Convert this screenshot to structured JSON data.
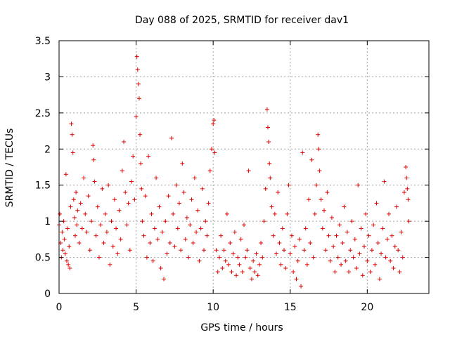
{
  "chart_data": {
    "type": "scatter",
    "title": "Day 088 of 2025, SRMTID for receiver dav1",
    "xlabel": "GPS time / hours",
    "ylabel": "SRMTID / TECUs",
    "xlim": [
      0,
      24
    ],
    "ylim": [
      0,
      3.5
    ],
    "x_ticks": [
      0,
      5,
      10,
      15,
      20
    ],
    "x_tick_labels": [
      "0",
      "5",
      "10",
      "15",
      "20"
    ],
    "y_ticks": [
      0,
      0.5,
      1,
      1.5,
      2,
      2.5,
      3,
      3.5
    ],
    "y_tick_labels": [
      "0",
      "0.5",
      "1",
      "1.5",
      "2",
      "2.5",
      "3",
      "3.5"
    ],
    "grid": true,
    "marker": "+",
    "series": [
      {
        "name": "dav1",
        "color": "#e00000",
        "points": [
          [
            0.0,
            0.95
          ],
          [
            0.05,
            1.1
          ],
          [
            0.1,
            0.7
          ],
          [
            0.15,
            0.5
          ],
          [
            0.2,
            0.85
          ],
          [
            0.25,
            0.6
          ],
          [
            0.3,
            1.0
          ],
          [
            0.35,
            0.75
          ],
          [
            0.4,
            0.55
          ],
          [
            0.45,
            1.65
          ],
          [
            0.5,
            0.45
          ],
          [
            0.55,
            0.9
          ],
          [
            0.6,
            0.4
          ],
          [
            0.65,
            0.65
          ],
          [
            0.7,
            0.35
          ],
          [
            0.75,
            1.2
          ],
          [
            0.8,
            2.35
          ],
          [
            0.85,
            2.2
          ],
          [
            0.9,
            1.95
          ],
          [
            0.95,
            1.3
          ],
          [
            1.0,
            1.05
          ],
          [
            1.05,
            0.8
          ],
          [
            1.1,
            1.4
          ],
          [
            1.15,
            0.95
          ],
          [
            1.2,
            1.15
          ],
          [
            1.3,
            0.7
          ],
          [
            1.4,
            1.25
          ],
          [
            1.5,
            0.9
          ],
          [
            1.6,
            1.6
          ],
          [
            1.7,
            1.1
          ],
          [
            1.8,
            0.85
          ],
          [
            1.9,
            1.35
          ],
          [
            2.0,
            0.6
          ],
          [
            2.1,
            1.0
          ],
          [
            2.2,
            2.05
          ],
          [
            2.25,
            1.85
          ],
          [
            2.3,
            1.55
          ],
          [
            2.4,
            0.8
          ],
          [
            2.5,
            1.2
          ],
          [
            2.6,
            0.5
          ],
          [
            2.7,
            0.95
          ],
          [
            2.8,
            1.45
          ],
          [
            2.9,
            0.7
          ],
          [
            3.0,
            1.1
          ],
          [
            3.1,
            0.85
          ],
          [
            3.2,
            1.5
          ],
          [
            3.3,
            0.4
          ],
          [
            3.4,
            1.0
          ],
          [
            3.5,
            0.65
          ],
          [
            3.6,
            1.3
          ],
          [
            3.7,
            0.9
          ],
          [
            3.8,
            0.55
          ],
          [
            3.9,
            1.15
          ],
          [
            4.0,
            0.75
          ],
          [
            4.1,
            1.7
          ],
          [
            4.2,
            2.1
          ],
          [
            4.3,
            1.4
          ],
          [
            4.4,
            0.95
          ],
          [
            4.5,
            1.25
          ],
          [
            4.6,
            0.6
          ],
          [
            4.7,
            1.55
          ],
          [
            4.8,
            1.9
          ],
          [
            4.9,
            1.3
          ],
          [
            5.0,
            2.45
          ],
          [
            5.05,
            3.28
          ],
          [
            5.1,
            3.1
          ],
          [
            5.15,
            2.9
          ],
          [
            5.2,
            2.7
          ],
          [
            5.25,
            2.2
          ],
          [
            5.3,
            1.8
          ],
          [
            5.35,
            1.45
          ],
          [
            5.4,
            1.0
          ],
          [
            5.5,
            0.8
          ],
          [
            5.6,
            1.35
          ],
          [
            5.7,
            0.5
          ],
          [
            5.8,
            1.9
          ],
          [
            5.9,
            0.7
          ],
          [
            6.0,
            1.1
          ],
          [
            6.1,
            0.45
          ],
          [
            6.2,
            0.9
          ],
          [
            6.3,
            1.6
          ],
          [
            6.4,
            0.75
          ],
          [
            6.5,
            1.2
          ],
          [
            6.6,
            0.35
          ],
          [
            6.7,
            0.85
          ],
          [
            6.8,
            0.2
          ],
          [
            6.9,
            1.0
          ],
          [
            7.0,
            0.55
          ],
          [
            7.1,
            1.35
          ],
          [
            7.2,
            0.7
          ],
          [
            7.3,
            2.15
          ],
          [
            7.4,
            1.1
          ],
          [
            7.5,
            0.65
          ],
          [
            7.6,
            1.5
          ],
          [
            7.7,
            0.9
          ],
          [
            7.8,
            1.25
          ],
          [
            7.9,
            0.6
          ],
          [
            8.0,
            1.8
          ],
          [
            8.1,
            1.4
          ],
          [
            8.2,
            0.75
          ],
          [
            8.3,
            1.05
          ],
          [
            8.4,
            0.5
          ],
          [
            8.5,
            0.95
          ],
          [
            8.6,
            1.3
          ],
          [
            8.7,
            0.7
          ],
          [
            8.8,
            1.6
          ],
          [
            8.9,
            0.85
          ],
          [
            9.0,
            1.15
          ],
          [
            9.1,
            0.45
          ],
          [
            9.2,
            0.9
          ],
          [
            9.3,
            1.45
          ],
          [
            9.4,
            0.6
          ],
          [
            9.5,
            1.0
          ],
          [
            9.6,
            0.8
          ],
          [
            9.7,
            1.25
          ],
          [
            9.8,
            1.7
          ],
          [
            9.9,
            2.0
          ],
          [
            10.0,
            2.35
          ],
          [
            10.05,
            2.4
          ],
          [
            10.1,
            1.95
          ],
          [
            10.2,
            0.6
          ],
          [
            10.3,
            0.3
          ],
          [
            10.4,
            0.5
          ],
          [
            10.5,
            0.8
          ],
          [
            10.6,
            0.35
          ],
          [
            10.7,
            0.6
          ],
          [
            10.8,
            0.45
          ],
          [
            10.9,
            1.1
          ],
          [
            11.0,
            0.4
          ],
          [
            11.1,
            0.7
          ],
          [
            11.2,
            0.3
          ],
          [
            11.3,
            0.55
          ],
          [
            11.4,
            0.85
          ],
          [
            11.5,
            0.25
          ],
          [
            11.6,
            0.5
          ],
          [
            11.7,
            0.4
          ],
          [
            11.8,
            0.75
          ],
          [
            11.9,
            0.3
          ],
          [
            12.0,
            0.95
          ],
          [
            12.1,
            0.5
          ],
          [
            12.2,
            0.6
          ],
          [
            12.3,
            1.7
          ],
          [
            12.4,
            0.35
          ],
          [
            12.5,
            0.2
          ],
          [
            12.6,
            0.45
          ],
          [
            12.7,
            0.3
          ],
          [
            12.8,
            0.55
          ],
          [
            12.9,
            0.25
          ],
          [
            13.0,
            0.4
          ],
          [
            13.1,
            0.7
          ],
          [
            13.2,
            0.5
          ],
          [
            13.3,
            1.0
          ],
          [
            13.4,
            1.45
          ],
          [
            13.5,
            2.55
          ],
          [
            13.55,
            2.3
          ],
          [
            13.6,
            2.1
          ],
          [
            13.65,
            1.8
          ],
          [
            13.7,
            1.6
          ],
          [
            13.8,
            1.2
          ],
          [
            13.9,
            0.8
          ],
          [
            14.0,
            1.1
          ],
          [
            14.1,
            0.55
          ],
          [
            14.2,
            1.4
          ],
          [
            14.3,
            0.7
          ],
          [
            14.4,
            0.4
          ],
          [
            14.5,
            0.9
          ],
          [
            14.6,
            0.6
          ],
          [
            14.7,
            0.35
          ],
          [
            14.8,
            1.1
          ],
          [
            14.9,
            1.5
          ],
          [
            15.0,
            0.55
          ],
          [
            15.1,
            0.8
          ],
          [
            15.2,
            0.3
          ],
          [
            15.3,
            0.65
          ],
          [
            15.4,
            0.2
          ],
          [
            15.5,
            0.45
          ],
          [
            15.6,
            0.75
          ],
          [
            15.7,
            0.1
          ],
          [
            15.8,
            1.95
          ],
          [
            15.9,
            0.6
          ],
          [
            16.0,
            0.9
          ],
          [
            16.1,
            0.4
          ],
          [
            16.2,
            1.3
          ],
          [
            16.3,
            0.7
          ],
          [
            16.4,
            1.85
          ],
          [
            16.5,
            0.5
          ],
          [
            16.6,
            1.1
          ],
          [
            16.7,
            1.5
          ],
          [
            16.8,
            2.2
          ],
          [
            16.85,
            2.0
          ],
          [
            16.9,
            1.7
          ],
          [
            17.0,
            1.3
          ],
          [
            17.1,
            0.9
          ],
          [
            17.2,
            1.15
          ],
          [
            17.3,
            0.6
          ],
          [
            17.4,
            1.4
          ],
          [
            17.5,
            0.8
          ],
          [
            17.6,
            0.45
          ],
          [
            17.7,
            1.05
          ],
          [
            17.8,
            0.65
          ],
          [
            17.9,
            0.3
          ],
          [
            18.0,
            0.8
          ],
          [
            18.1,
            0.5
          ],
          [
            18.2,
            0.95
          ],
          [
            18.3,
            0.4
          ],
          [
            18.4,
            0.7
          ],
          [
            18.5,
            1.2
          ],
          [
            18.6,
            0.45
          ],
          [
            18.7,
            0.85
          ],
          [
            18.8,
            0.3
          ],
          [
            18.9,
            0.6
          ],
          [
            19.0,
            1.0
          ],
          [
            19.1,
            0.5
          ],
          [
            19.2,
            0.75
          ],
          [
            19.3,
            0.35
          ],
          [
            19.4,
            1.5
          ],
          [
            19.5,
            0.55
          ],
          [
            19.6,
            0.9
          ],
          [
            19.7,
            0.25
          ],
          [
            19.8,
            0.65
          ],
          [
            19.9,
            1.1
          ],
          [
            20.0,
            0.45
          ],
          [
            20.1,
            0.8
          ],
          [
            20.2,
            0.3
          ],
          [
            20.3,
            0.6
          ],
          [
            20.4,
            0.95
          ],
          [
            20.5,
            0.4
          ],
          [
            20.6,
            1.25
          ],
          [
            20.7,
            0.7
          ],
          [
            20.8,
            0.2
          ],
          [
            20.9,
            0.55
          ],
          [
            21.0,
            0.9
          ],
          [
            21.1,
            1.55
          ],
          [
            21.2,
            0.5
          ],
          [
            21.3,
            0.75
          ],
          [
            21.4,
            1.1
          ],
          [
            21.5,
            0.45
          ],
          [
            21.6,
            0.8
          ],
          [
            21.7,
            0.35
          ],
          [
            21.8,
            0.65
          ],
          [
            21.9,
            1.2
          ],
          [
            22.0,
            0.6
          ],
          [
            22.1,
            0.3
          ],
          [
            22.2,
            0.85
          ],
          [
            22.3,
            0.5
          ],
          [
            22.4,
            1.4
          ],
          [
            22.5,
            1.75
          ],
          [
            22.55,
            1.6
          ],
          [
            22.6,
            1.45
          ],
          [
            22.65,
            1.3
          ],
          [
            22.7,
            1.0
          ]
        ]
      }
    ]
  }
}
